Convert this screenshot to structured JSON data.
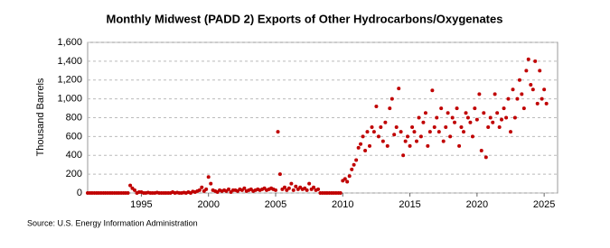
{
  "chart_data": {
    "type": "scatter",
    "title": "Monthly Midwest (PADD 2) Exports of Other Hydrocarbons/Oxygenates",
    "y_label": "Thousand Barrels",
    "source": "Source: U.S. Energy Information Administration",
    "xlim": [
      1991,
      2026
    ],
    "xticks": [
      1995,
      2000,
      2005,
      2010,
      2015,
      2020,
      2025
    ],
    "ylim": [
      0,
      1600
    ],
    "yticks": [
      0,
      200,
      400,
      600,
      800,
      {
        "value": 1000,
        "label": "1,000"
      },
      {
        "value": 1200,
        "label": "1,200"
      },
      {
        "value": 1400,
        "label": "1,400"
      },
      {
        "value": 1600,
        "label": "1,600"
      }
    ],
    "grid": true,
    "series": [
      {
        "color": "#c00000",
        "x": [
          1991,
          1991.17,
          1991.33,
          1991.5,
          1991.67,
          1991.83,
          1992,
          1992.17,
          1992.33,
          1992.5,
          1992.67,
          1992.83,
          1993,
          1993.17,
          1993.33,
          1993.5,
          1993.67,
          1993.83,
          1994,
          1994.17,
          1994.33,
          1994.5,
          1994.67,
          1994.83,
          1995,
          1995.17,
          1995.33,
          1995.5,
          1995.67,
          1995.83,
          1996,
          1996.17,
          1996.33,
          1996.5,
          1996.67,
          1996.83,
          1997,
          1997.17,
          1997.33,
          1997.5,
          1997.67,
          1997.83,
          1998,
          1998.17,
          1998.33,
          1998.5,
          1998.67,
          1998.83,
          1999,
          1999.17,
          1999.33,
          1999.5,
          1999.67,
          1999.83,
          2000,
          2000.17,
          2000.33,
          2000.5,
          2000.67,
          2000.83,
          2001,
          2001.17,
          2001.33,
          2001.5,
          2001.67,
          2001.83,
          2002,
          2002.17,
          2002.33,
          2002.5,
          2002.67,
          2002.83,
          2003,
          2003.17,
          2003.33,
          2003.5,
          2003.67,
          2003.83,
          2004,
          2004.17,
          2004.33,
          2004.5,
          2004.67,
          2004.83,
          2005,
          2005.17,
          2005.33,
          2005.5,
          2005.67,
          2005.83,
          2006,
          2006.17,
          2006.33,
          2006.5,
          2006.67,
          2006.83,
          2007,
          2007.17,
          2007.33,
          2007.5,
          2007.67,
          2007.83,
          2008,
          2008.17,
          2008.33,
          2008.5,
          2008.67,
          2008.83,
          2009,
          2009.17,
          2009.33,
          2009.5,
          2009.67,
          2009.83,
          2010,
          2010.17,
          2010.33,
          2010.5,
          2010.67,
          2010.83,
          2011,
          2011.17,
          2011.33,
          2011.5,
          2011.67,
          2011.83,
          2012,
          2012.17,
          2012.33,
          2012.5,
          2012.67,
          2012.83,
          2013,
          2013.17,
          2013.33,
          2013.5,
          2013.67,
          2013.83,
          2014,
          2014.17,
          2014.33,
          2014.5,
          2014.67,
          2014.83,
          2015,
          2015.17,
          2015.33,
          2015.5,
          2015.67,
          2015.83,
          2016,
          2016.17,
          2016.33,
          2016.5,
          2016.67,
          2016.83,
          2017,
          2017.17,
          2017.33,
          2017.5,
          2017.67,
          2017.83,
          2018,
          2018.17,
          2018.33,
          2018.5,
          2018.67,
          2018.83,
          2019,
          2019.17,
          2019.33,
          2019.5,
          2019.67,
          2019.83,
          2020,
          2020.17,
          2020.33,
          2020.5,
          2020.67,
          2020.83,
          2021,
          2021.17,
          2021.33,
          2021.5,
          2021.67,
          2021.83,
          2022,
          2022.17,
          2022.33,
          2022.5,
          2022.67,
          2022.83,
          2023,
          2023.17,
          2023.33,
          2023.5,
          2023.67,
          2023.83,
          2024,
          2024.17,
          2024.33,
          2024.5,
          2024.67,
          2024.83,
          2025,
          2025.17
        ],
        "values": [
          0,
          0,
          0,
          0,
          0,
          0,
          0,
          0,
          0,
          0,
          0,
          0,
          0,
          0,
          0,
          0,
          0,
          0,
          0,
          80,
          50,
          30,
          0,
          10,
          10,
          0,
          0,
          5,
          0,
          0,
          0,
          5,
          0,
          0,
          0,
          0,
          0,
          0,
          10,
          0,
          5,
          0,
          0,
          5,
          0,
          10,
          0,
          15,
          10,
          20,
          30,
          60,
          20,
          40,
          170,
          100,
          30,
          20,
          10,
          30,
          20,
          30,
          20,
          40,
          10,
          30,
          30,
          20,
          40,
          30,
          50,
          20,
          30,
          40,
          20,
          30,
          40,
          30,
          40,
          50,
          30,
          40,
          50,
          40,
          30,
          650,
          200,
          40,
          60,
          30,
          50,
          100,
          30,
          70,
          40,
          60,
          40,
          50,
          30,
          100,
          40,
          60,
          30,
          40,
          0,
          0,
          0,
          0,
          0,
          0,
          0,
          0,
          0,
          0,
          130,
          150,
          120,
          180,
          250,
          300,
          350,
          480,
          520,
          600,
          450,
          650,
          500,
          700,
          650,
          920,
          600,
          700,
          550,
          750,
          500,
          900,
          1000,
          620,
          700,
          1110,
          650,
          400,
          550,
          600,
          500,
          700,
          650,
          550,
          800,
          600,
          750,
          850,
          500,
          650,
          1090,
          700,
          800,
          650,
          900,
          550,
          700,
          850,
          600,
          800,
          750,
          900,
          500,
          700,
          650,
          850,
          800,
          750,
          600,
          900,
          780,
          1050,
          450,
          850,
          380,
          700,
          800,
          750,
          1050,
          850,
          700,
          780,
          900,
          800,
          1000,
          650,
          1100,
          800,
          1000,
          1200,
          1050,
          900,
          1300,
          1420,
          1150,
          1100,
          1400,
          950,
          1300,
          1000,
          1100,
          950
        ]
      }
    ]
  }
}
